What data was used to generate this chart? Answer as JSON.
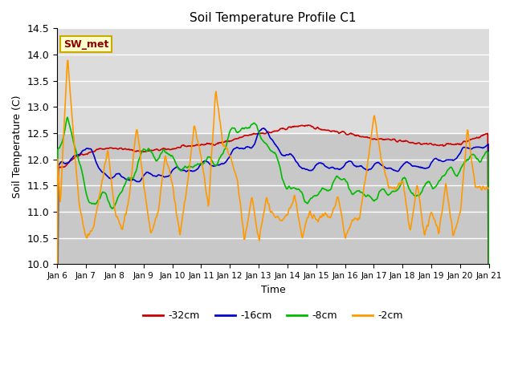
{
  "title": "Soil Temperature Profile C1",
  "xlabel": "Time",
  "ylabel": "Soil Temperature (C)",
  "ylim": [
    10.0,
    14.5
  ],
  "yticks": [
    10.0,
    10.5,
    11.0,
    11.5,
    12.0,
    12.5,
    13.0,
    13.5,
    14.0,
    14.5
  ],
  "xtick_labels": [
    "Jan 6",
    "Jan 7",
    "Jan 8",
    "Jan 9",
    "Jan 10",
    "Jan 11",
    "Jan 12",
    "Jan 13",
    "Jan 14",
    "Jan 15",
    "Jan 16",
    "Jan 17",
    "Jan 18",
    "Jan 19",
    "Jan 20",
    "Jan 21"
  ],
  "colors": {
    "32cm": "#cc0000",
    "16cm": "#0000cc",
    "8cm": "#00bb00",
    "2cm": "#ff9900"
  },
  "legend_labels": [
    "-32cm",
    "-16cm",
    "-8cm",
    "-2cm"
  ],
  "annotation_text": "SW_met",
  "annotation_bg": "#ffffcc",
  "annotation_border": "#ccaa00",
  "bg_upper": "#dcdcdc",
  "bg_lower": "#c8c8c8",
  "grid_color": "#ffffff",
  "n_points": 721
}
